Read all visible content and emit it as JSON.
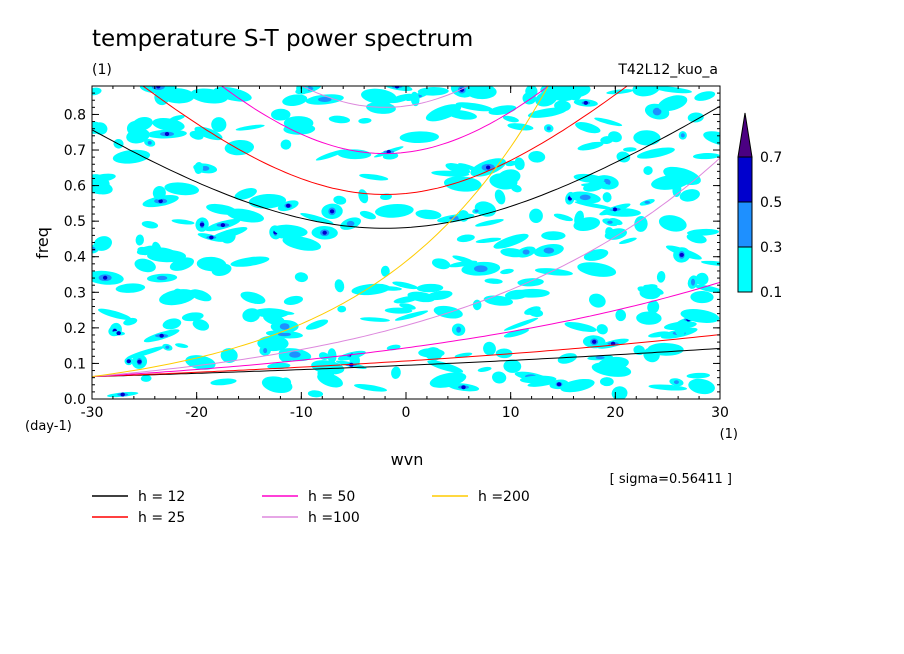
{
  "chart_data": {
    "type": "heatmap",
    "title": "temperature S-T power spectrum",
    "subtitle_left": "(1)",
    "subtitle_right": "T42L12_kuo_a",
    "xlabel": "wvn",
    "ylabel": "freq",
    "x_unit": "(1)",
    "y_unit": "(day-1)",
    "xlim": [
      -30,
      30
    ],
    "ylim": [
      0,
      0.88
    ],
    "x_ticks": [
      "-30",
      "-20",
      "-10",
      "0",
      "10",
      "20",
      "30"
    ],
    "x_tick_values": [
      -30,
      -20,
      -10,
      0,
      10,
      20,
      30
    ],
    "y_ticks": [
      "0.0",
      "0.1",
      "0.2",
      "0.3",
      "0.4",
      "0.5",
      "0.6",
      "0.7",
      "0.8"
    ],
    "y_tick_values": [
      0,
      0.1,
      0.2,
      0.3,
      0.4,
      0.5,
      0.6,
      0.7,
      0.8
    ],
    "sigma_text": "[ sigma=0.56411 ]",
    "colorbar": {
      "levels": [
        "0.1",
        "0.3",
        "0.5",
        "0.7"
      ],
      "colors": [
        "#00ffff",
        "#1e90ff",
        "#0000cd",
        "#4b0082"
      ]
    },
    "series": [
      {
        "name": "h = 12",
        "color": "#000000",
        "x_eq_min": -2,
        "f_min": 0.48,
        "slope": 0.0209
      },
      {
        "name": "h = 25",
        "color": "#ff0000",
        "x_eq_min": -2,
        "f_min": 0.575,
        "slope": 0.0209
      },
      {
        "name": "h = 50",
        "color": "#ff00cc",
        "x_eq_min": -2,
        "f_min": 0.69,
        "slope": 0.0209
      },
      {
        "name": "h =100",
        "color": "#dd88dd",
        "x_eq_min": -2,
        "f_min": 0.82,
        "slope": 0.0209
      },
      {
        "name": "h =200",
        "color": "#ffcc00",
        "x_eq_min": -2,
        "f_min": 0.96,
        "slope": 0.0209
      }
    ],
    "kelvin_lines": [
      {
        "name": "h = 12",
        "color": "#000000",
        "f_at_30": 0.76
      },
      {
        "name": "h = 25",
        "color": "#ff0000",
        "f_at_24": 0.88
      },
      {
        "name": "h = 50",
        "color": "#ff00cc",
        "f_at_16": 0.88
      },
      {
        "name": "h =100",
        "color": "#dd88dd",
        "f_at_11": 0.88
      },
      {
        "name": "h =200",
        "color": "#ffcc00",
        "f_at_7": 0.88
      }
    ]
  }
}
